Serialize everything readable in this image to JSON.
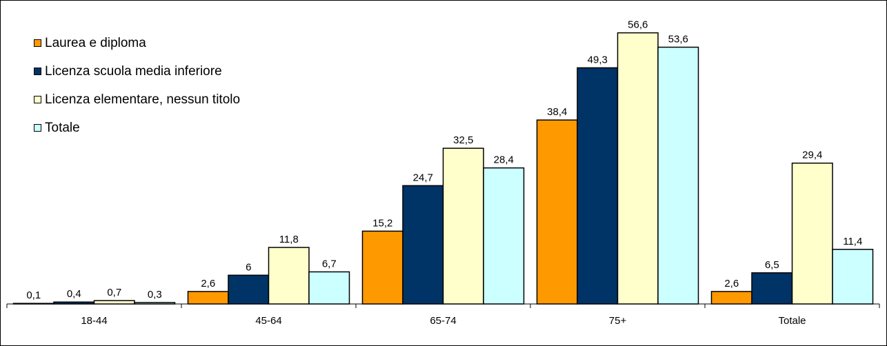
{
  "chart_data": {
    "type": "bar",
    "title": "",
    "xlabel": "",
    "ylabel": "",
    "ylim": [
      0,
      60
    ],
    "grid": false,
    "legend_position": "top-left",
    "categories": [
      "18-44",
      "45-64",
      "65-74",
      "75+",
      "Totale"
    ],
    "series": [
      {
        "name": "Laurea e diploma",
        "color": "#ff9900",
        "values": [
          0.1,
          2.6,
          15.2,
          38.4,
          2.6
        ],
        "labels": [
          "0,1",
          "2,6",
          "15,2",
          "38,4",
          "2,6"
        ]
      },
      {
        "name": "Licenza scuola media inferiore",
        "color": "#003366",
        "values": [
          0.4,
          6,
          24.7,
          49.3,
          6.5
        ],
        "labels": [
          "0,4",
          "6",
          "24,7",
          "49,3",
          "6,5"
        ]
      },
      {
        "name": "Licenza elementare, nessun titolo",
        "color": "#ffffcc",
        "values": [
          0.7,
          11.8,
          32.5,
          56.6,
          29.4
        ],
        "labels": [
          "0,7",
          "11,8",
          "32,5",
          "56,6",
          "29,4"
        ]
      },
      {
        "name": "Totale",
        "color": "#ccffff",
        "values": [
          0.3,
          6.7,
          28.4,
          53.6,
          11.4
        ],
        "labels": [
          "0,3",
          "6,7",
          "28,4",
          "53,6",
          "11,4"
        ]
      }
    ]
  }
}
